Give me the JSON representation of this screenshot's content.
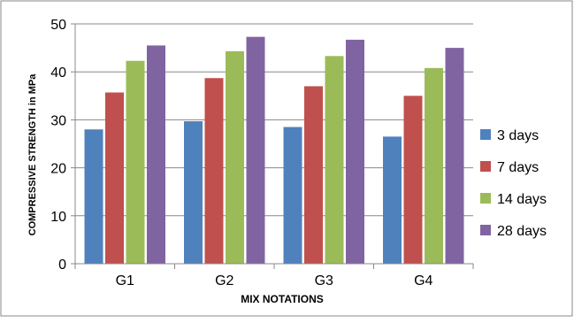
{
  "chart_data": {
    "type": "bar",
    "title": "",
    "xlabel": "MIX NOTATIONS",
    "ylabel": "COMPRESSIVE STRENGTH in MPa",
    "categories": [
      "G1",
      "G2",
      "G3",
      "G4"
    ],
    "ylim": [
      0,
      50
    ],
    "yticks": [
      "0",
      "10",
      "20",
      "30",
      "40",
      "50"
    ],
    "grid": true,
    "legend_position": "right",
    "series": [
      {
        "name": "3 days",
        "color": "#4F81BD",
        "values": [
          28.0,
          29.7,
          28.5,
          26.5
        ]
      },
      {
        "name": "7 days",
        "color": "#C0504D",
        "values": [
          35.7,
          38.7,
          37.0,
          35.0
        ]
      },
      {
        "name": "14 days",
        "color": "#9BBB59",
        "values": [
          42.3,
          44.3,
          43.3,
          40.8
        ]
      },
      {
        "name": "28 days",
        "color": "#8064A2",
        "values": [
          45.5,
          47.3,
          46.7,
          45.0
        ]
      }
    ]
  }
}
